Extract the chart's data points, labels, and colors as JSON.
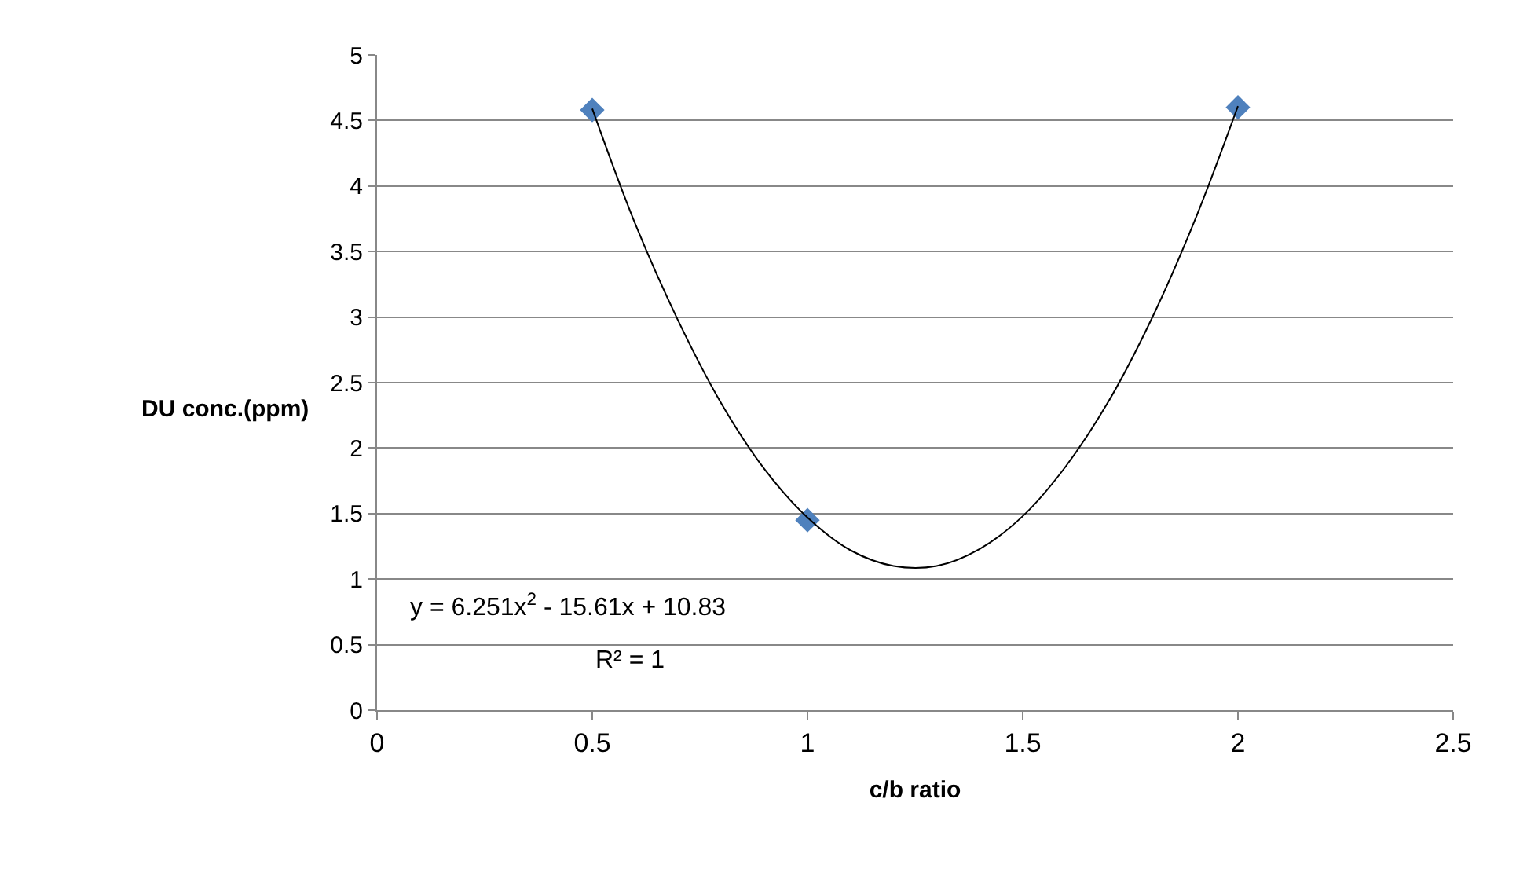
{
  "chart_data": {
    "type": "scatter",
    "xlabel": "c/b ratio",
    "ylabel": "DU conc.(ppm)",
    "xlim": [
      0,
      2.5
    ],
    "xticks": [
      0,
      0.5,
      1,
      1.5,
      2,
      2.5
    ],
    "ylim": [
      0,
      5
    ],
    "yticks": [
      0,
      0.5,
      1,
      1.5,
      2,
      2.5,
      3,
      3.5,
      4,
      4.5,
      5
    ],
    "grid": "y",
    "series": [
      {
        "color": "#4f81bd",
        "marker": "diamond",
        "x": [
          0.5,
          1,
          2
        ],
        "values": [
          4.58,
          1.45,
          4.6
        ]
      },
      {
        "type": "line",
        "color": "#000000",
        "marker": "none",
        "line_style": "solid",
        "x": [
          0.5,
          0.6,
          0.7,
          0.8,
          0.9,
          1.0,
          1.1,
          1.2,
          1.3,
          1.4,
          1.5,
          1.6,
          1.7,
          1.8,
          1.9,
          2.0
        ],
        "values": [
          4.59,
          3.71,
          2.97,
          2.34,
          1.84,
          1.47,
          1.22,
          1.1,
          1.1,
          1.23,
          1.48,
          1.86,
          2.36,
          2.99,
          3.74,
          4.61
        ]
      }
    ],
    "annotations": [
      "y = 6.251x$^{2}$ - 15.61x + 10.83",
      "R² = 1"
    ]
  }
}
